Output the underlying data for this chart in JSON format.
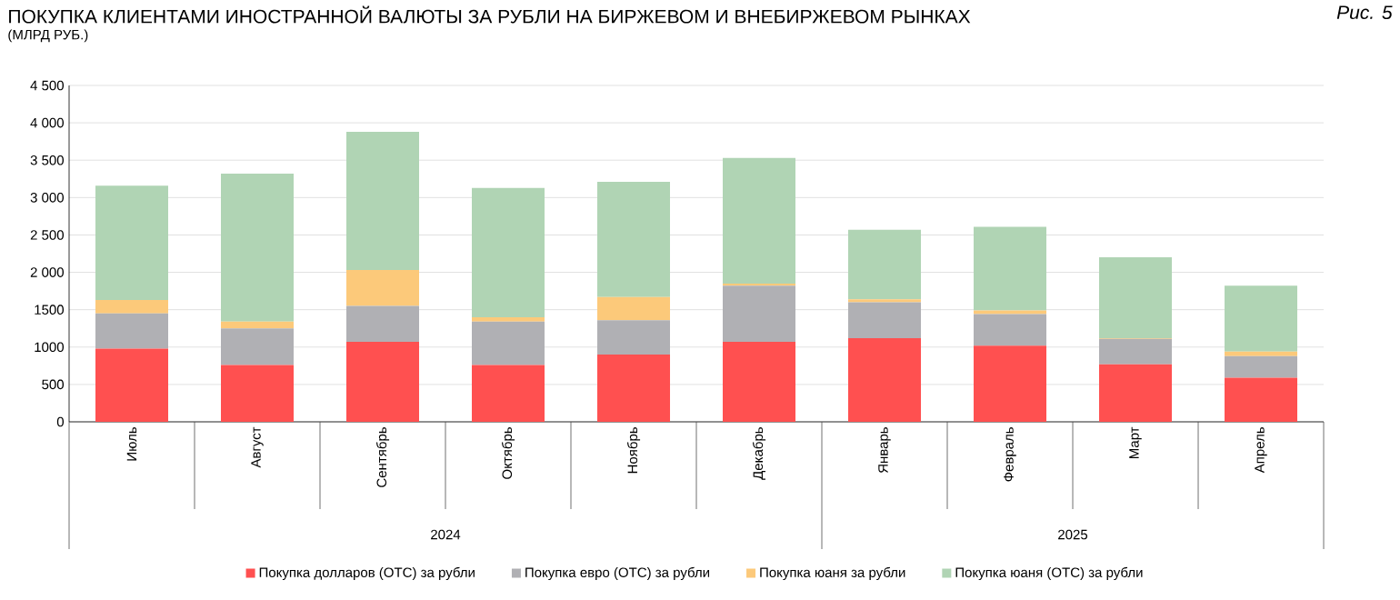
{
  "chart_data": {
    "type": "bar",
    "stacked": true,
    "title": "ПОКУПКА КЛИЕНТАМИ ИНОСТРАННОЙ ВАЛЮТЫ ЗА РУБЛИ НА БИРЖЕВОМ И ВНЕБИРЖЕВОМ РЫНКАХ",
    "subtitle": "(МЛРД РУБ.)",
    "annotations": [
      "Рис. 5",
      "2024",
      "2025"
    ],
    "categories": [
      "Июль",
      "Август",
      "Сентябрь",
      "Октябрь",
      "Ноябрь",
      "Декабрь",
      "Январь",
      "Февраль",
      "Март",
      "Апрель"
    ],
    "series": [
      {
        "name": "Покупка долларов (OTC) за рубли",
        "color": "#ff5050",
        "values": [
          980,
          760,
          1070,
          760,
          900,
          1070,
          1120,
          1020,
          770,
          590
        ]
      },
      {
        "name": "Покупка евро (OTC) за рубли",
        "color": "#b0b0b4",
        "values": [
          470,
          490,
          480,
          580,
          460,
          750,
          480,
          420,
          340,
          290
        ]
      },
      {
        "name": "Покупка юаня за рубли",
        "color": "#fcc97a",
        "values": [
          180,
          90,
          480,
          60,
          310,
          30,
          40,
          50,
          10,
          60
        ]
      },
      {
        "name": "Покупка юаня (OTC) за рубли",
        "color": "#b0d4b4",
        "values": [
          1530,
          1980,
          1850,
          1730,
          1540,
          1680,
          930,
          1120,
          1080,
          880
        ]
      }
    ],
    "ylim": [
      0,
      4500
    ],
    "yticks": [
      0,
      500,
      1000,
      1500,
      {
        "value": 2000,
        "label": "2 000"
      },
      {
        "value": 2500,
        "label": "2 500"
      },
      {
        "value": 3000,
        "label": "3 000"
      },
      {
        "value": 3500,
        "label": "3 500"
      },
      {
        "value": 4000,
        "label": "4 000"
      },
      {
        "value": 4500,
        "label": "4 500"
      }
    ],
    "grid": "y",
    "legend": "bottom"
  }
}
